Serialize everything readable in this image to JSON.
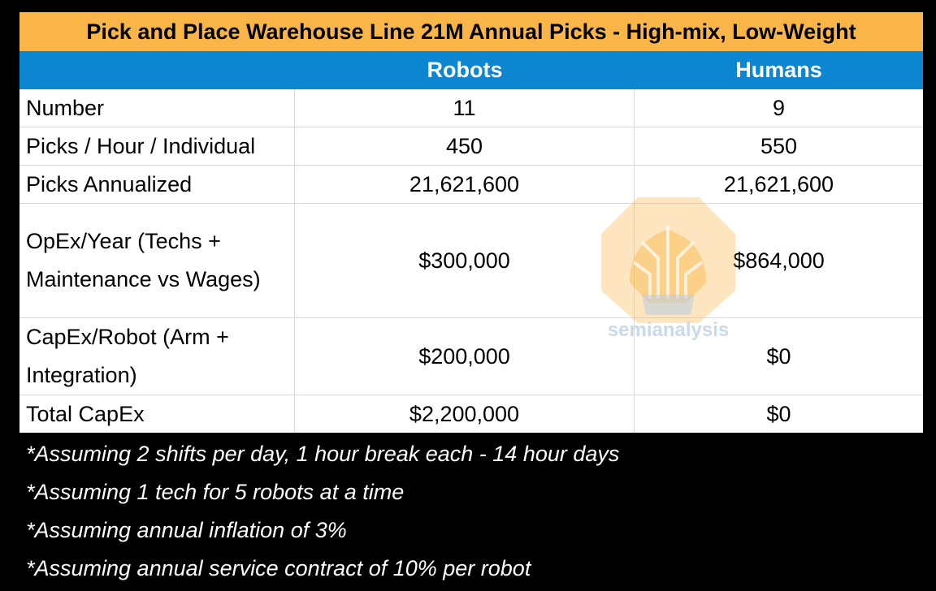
{
  "title": "Pick and Place Warehouse Line 21M Annual Picks - High-mix, Low-Weight",
  "columns": [
    "",
    "Robots",
    "Humans"
  ],
  "rows": [
    {
      "label": "Number",
      "robots": "11",
      "humans": "9"
    },
    {
      "label": "Picks / Hour / Individual",
      "robots": "450",
      "humans": "550"
    },
    {
      "label": "Picks Annualized",
      "robots": "21,621,600",
      "humans": "21,621,600"
    },
    {
      "label": "OpEx/Year (Techs +\nMaintenance vs Wages)",
      "robots": "$300,000",
      "humans": "$864,000"
    },
    {
      "label": "CapEx/Robot (Arm +\nIntegration)",
      "robots": "$200,000",
      "humans": "$0"
    },
    {
      "label": "Total CapEx",
      "robots": "$2,200,000",
      "humans": "$0"
    }
  ],
  "notes": [
    "*Assuming 2 shifts per day, 1 hour break each - 14 hour days",
    "*Assuming 1 tech for 5 robots at a time",
    "*Assuming annual inflation of 3%",
    "*Assuming annual service contract of 10% per robot"
  ],
  "watermark": {
    "text": "semianalysis"
  },
  "colors": {
    "title_bg": "#F9B548",
    "header_bg": "#0C86D0",
    "background": "#000000"
  }
}
